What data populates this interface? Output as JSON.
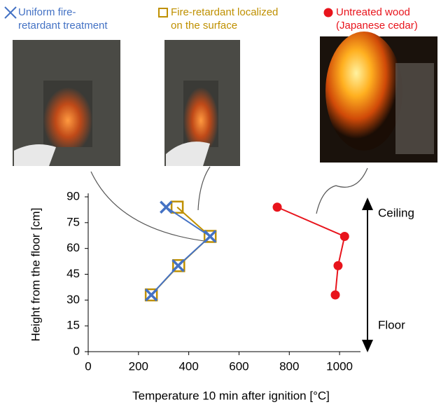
{
  "chart_data": {
    "type": "line",
    "xlabel": "Temperature 10 min after ignition [°C]",
    "ylabel": "Height from the floor [cm]",
    "xlim": [
      0,
      1100
    ],
    "xticks": [
      0,
      200,
      400,
      600,
      800,
      1000
    ],
    "ylim": [
      0,
      90
    ],
    "yticks": [
      0,
      15,
      30,
      45,
      60,
      75,
      90
    ],
    "annotations": [
      "Ceiling",
      "Floor"
    ],
    "series": [
      {
        "name": "Uniform fire-\nretardant treatment",
        "color": "#4472c4",
        "marker": "x",
        "x": [
          310,
          485,
          358,
          251
        ],
        "values": [
          84,
          67,
          50,
          33
        ]
      },
      {
        "name": "Fire-retardant localized\non the surface",
        "color": "#bf9000",
        "marker": "square",
        "x": [
          354,
          485,
          360,
          251
        ],
        "values": [
          84,
          67,
          50,
          33
        ]
      },
      {
        "name": "Untreated wood\n(Japanese cedar)",
        "color": "#e8141c",
        "marker": "circle",
        "x": [
          752,
          1020,
          994,
          983
        ],
        "values": [
          84,
          67,
          50,
          33
        ]
      }
    ]
  }
}
